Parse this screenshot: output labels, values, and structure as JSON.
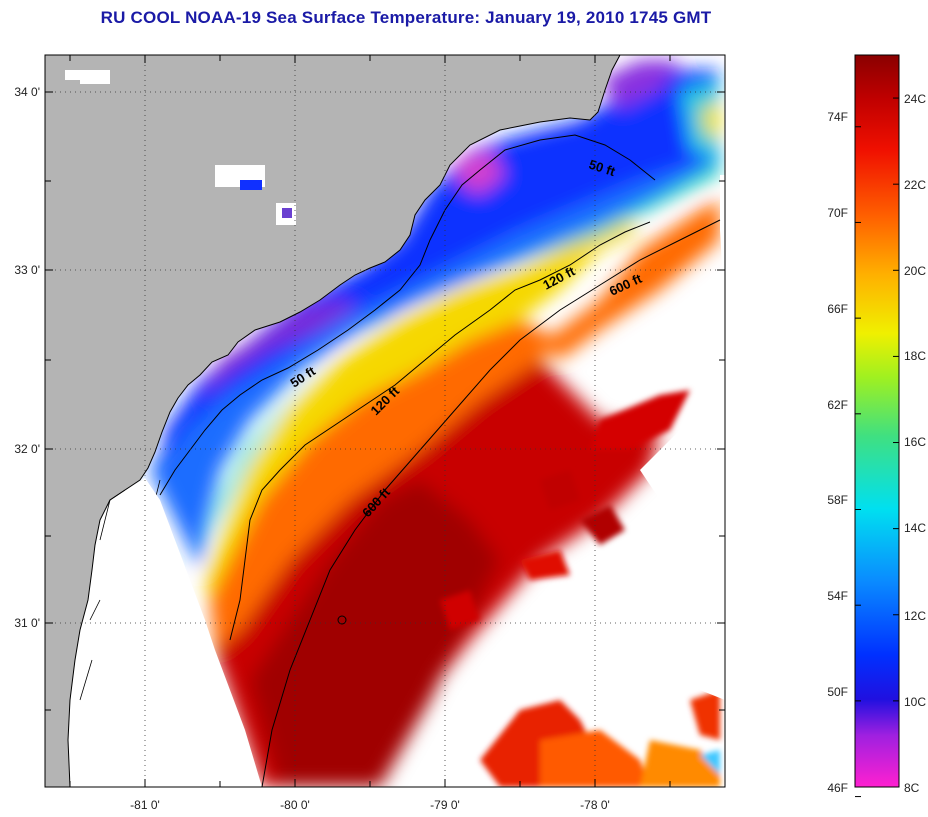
{
  "title": "RU COOL  NOAA-19  Sea Surface Temperature:  January 19, 2010 1745 GMT",
  "map": {
    "lon_ticks": [
      "-81 0'",
      "-80 0'",
      "-79 0'",
      "-78 0'"
    ],
    "lat_ticks": [
      "34 0'",
      "33 0'",
      "32 0'",
      "31 0'"
    ],
    "contours": [
      {
        "label": "50 ft"
      },
      {
        "label": "120 ft"
      },
      {
        "label": "600 ft"
      },
      {
        "label": "50 ft"
      },
      {
        "label": "120 ft"
      },
      {
        "label": "600 ft"
      }
    ],
    "colors": {
      "land": "#b4b4b4",
      "missing": "#ffffff"
    }
  },
  "colorbar": {
    "fahrenheit_ticks": [
      "74F",
      "70F",
      "66F",
      "62F",
      "58F",
      "54F",
      "50F",
      "46F"
    ],
    "celsius_ticks": [
      "24C",
      "22C",
      "20C",
      "18C",
      "16C",
      "14C",
      "12C",
      "10C",
      "8C"
    ],
    "range_c": [
      8,
      25
    ]
  }
}
